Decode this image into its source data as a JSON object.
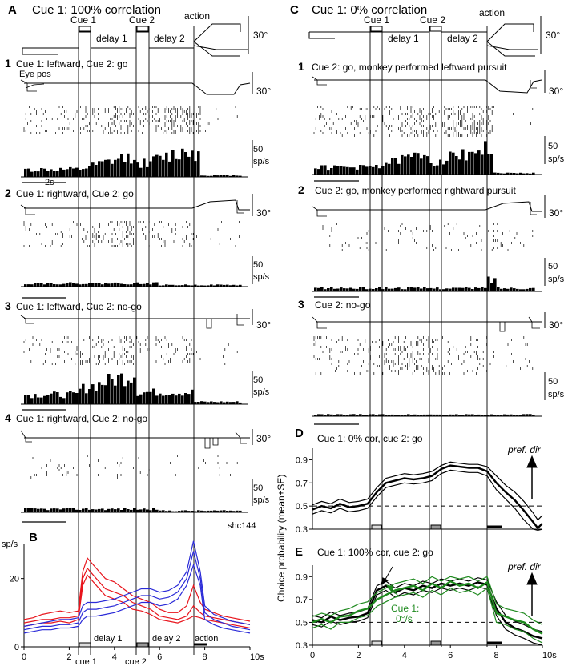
{
  "labels": {
    "panel_a": "A",
    "panel_b": "B",
    "panel_c": "C",
    "panel_d": "D",
    "panel_e": "E",
    "title_a": "Cue 1: 100% correlation",
    "title_c": "Cue 1: 0% correlation",
    "cue1": "Cue 1",
    "cue2": "Cue 2",
    "delay1": "delay 1",
    "delay2": "delay 2",
    "action": "action",
    "deg30": "30°",
    "eye_pos": "Eye pos",
    "rate50": "50",
    "rate_unit": "sp/s",
    "scale2s": "2s",
    "cell_id": "shc144",
    "a1_num": "1",
    "a1_title": "Cue 1: leftward,  Cue 2: go",
    "a2_num": "2",
    "a2_title": "Cue 1: rightward,  Cue 2: go",
    "a3_num": "3",
    "a3_title": "Cue 1: leftward,  Cue 2: no-go",
    "a4_num": "4",
    "a4_title": "Cue 1: rightward,  Cue 2: no-go",
    "c1_num": "1",
    "c1_title": "Cue 2: go, monkey performed leftward pursuit",
    "c2_num": "2",
    "c2_title": "Cue 2: go, monkey performed rightward pursuit",
    "c3_num": "3",
    "c3_title": "Cue 2: no-go",
    "b_ylabel": "sp/s",
    "b_xunit": "s",
    "b_cue1": "cue 1",
    "b_cue2": "cue 2",
    "b_delay1": "delay 1",
    "b_delay2": "delay 2",
    "b_action": "action",
    "cp_ylabel": "Choice probability  (mean±SE)",
    "d_title": "Cue 1: 0% cor, cue 2:  go",
    "e_title": "Cue 1: 100% cor, cue 2:  go",
    "pref_dir": "pref. dir",
    "e_green_1": "Cue 1:",
    "e_green_2": "0°/s",
    "e_xunit": "s"
  },
  "colors": {
    "black": "#000000",
    "red": "#e8141c",
    "blue": "#2a2ad8",
    "green": "#1f8a1f",
    "cue_box": "#dddddd",
    "cue2_box": "#999999"
  },
  "chart_data": [
    {
      "id": "B",
      "type": "line",
      "xlim": [
        0,
        10
      ],
      "ylim": [
        0,
        30
      ],
      "xticks": [
        0,
        2,
        4,
        6,
        8,
        10
      ],
      "xtick_labels": [
        "0",
        "2",
        "4",
        "6",
        "8",
        "10"
      ],
      "yticks": [
        0,
        20
      ],
      "ytick_labels": [
        "0",
        "20"
      ],
      "x": [
        0,
        0.4,
        0.8,
        1.2,
        1.6,
        2.0,
        2.4,
        2.6,
        2.8,
        3.2,
        3.6,
        4.0,
        4.4,
        4.8,
        5.2,
        5.6,
        6.0,
        6.4,
        6.8,
        7.2,
        7.5,
        7.8,
        8.0,
        8.4,
        8.8,
        9.2,
        9.6,
        10.0
      ],
      "series": [
        {
          "color": "red",
          "values": [
            7,
            7.5,
            8,
            8,
            8.5,
            8.5,
            9,
            20,
            23,
            20,
            17,
            16,
            15,
            13,
            12,
            11,
            9,
            8.5,
            8,
            9,
            12,
            10,
            9,
            8.5,
            8,
            7.5,
            7,
            6.5
          ]
        },
        {
          "color": "red",
          "values": [
            8,
            8.5,
            9.5,
            10,
            10.5,
            10,
            10.5,
            22,
            26,
            23,
            20,
            19,
            17,
            15,
            14,
            13,
            11,
            10,
            10,
            12,
            18,
            13,
            11,
            10,
            9,
            8.5,
            8,
            7.5
          ]
        },
        {
          "color": "red",
          "values": [
            6,
            6.5,
            7,
            7,
            7.5,
            7,
            8,
            18,
            21,
            18,
            15,
            14,
            13,
            11,
            10.5,
            9.5,
            8,
            7.5,
            7,
            8,
            9,
            8.5,
            8,
            7.5,
            7,
            6.5,
            6,
            5.5
          ]
        },
        {
          "color": "blue",
          "values": [
            5,
            5.5,
            6,
            6,
            6.5,
            6.5,
            7,
            10,
            11,
            11,
            11.5,
            12,
            13,
            14,
            15,
            15,
            14,
            14.5,
            16,
            20,
            28,
            20,
            10,
            8,
            7,
            6,
            5.5,
            5
          ]
        },
        {
          "color": "blue",
          "values": [
            6,
            6.5,
            7,
            7.5,
            8,
            8,
            8.5,
            12,
            13,
            13,
            13.5,
            14,
            15,
            16,
            17,
            17,
            16,
            16.5,
            18,
            22,
            31,
            22,
            12,
            9.5,
            8.5,
            7.5,
            7,
            6.5
          ]
        },
        {
          "color": "blue",
          "values": [
            4,
            4.5,
            5,
            5,
            5.5,
            5.5,
            6,
            8,
            9,
            9,
            9.5,
            10,
            11,
            12,
            13,
            13,
            12,
            12.5,
            14,
            18,
            24,
            18,
            8,
            6.5,
            5.5,
            5,
            4.5,
            4
          ]
        }
      ]
    },
    {
      "id": "D",
      "type": "line",
      "title": "Cue 1: 0% cor, cue 2:  go",
      "xlim": [
        0,
        10
      ],
      "ylim": [
        0.3,
        1.0
      ],
      "yticks": [
        0.3,
        0.5,
        0.7,
        0.9
      ],
      "ytick_labels": [
        "0.3",
        "0.5",
        "0.7",
        "0.9"
      ],
      "reference_line": 0.5,
      "x": [
        0,
        0.4,
        0.8,
        1.2,
        1.6,
        2.0,
        2.4,
        2.8,
        3.2,
        3.6,
        4.0,
        4.4,
        4.8,
        5.2,
        5.6,
        6.0,
        6.4,
        6.8,
        7.2,
        7.6,
        8.0,
        8.4,
        8.8,
        9.2,
        9.6,
        9.8,
        10.0
      ],
      "series": [
        {
          "color": "black",
          "values": [
            0.47,
            0.5,
            0.48,
            0.52,
            0.49,
            0.5,
            0.52,
            0.62,
            0.7,
            0.72,
            0.74,
            0.73,
            0.74,
            0.76,
            0.82,
            0.85,
            0.84,
            0.83,
            0.83,
            0.8,
            0.7,
            0.62,
            0.55,
            0.46,
            0.36,
            0.31,
            0.35
          ]
        },
        {
          "color": "black",
          "values": [
            0.51,
            0.54,
            0.52,
            0.56,
            0.53,
            0.54,
            0.56,
            0.66,
            0.74,
            0.76,
            0.78,
            0.77,
            0.78,
            0.8,
            0.85,
            0.88,
            0.87,
            0.86,
            0.86,
            0.84,
            0.76,
            0.68,
            0.62,
            0.54,
            0.44,
            0.38,
            0.42
          ]
        },
        {
          "color": "black",
          "values": [
            0.43,
            0.46,
            0.44,
            0.48,
            0.45,
            0.46,
            0.48,
            0.58,
            0.66,
            0.68,
            0.7,
            0.69,
            0.7,
            0.72,
            0.78,
            0.81,
            0.8,
            0.79,
            0.79,
            0.76,
            0.64,
            0.56,
            0.48,
            0.38,
            0.3,
            0.29,
            0.3
          ]
        }
      ]
    },
    {
      "id": "E",
      "type": "line",
      "title": "Cue 1: 100% cor, cue 2:  go",
      "xlim": [
        0,
        10
      ],
      "ylim": [
        0.3,
        1.0
      ],
      "xticks": [
        0,
        2,
        4,
        6,
        8,
        10
      ],
      "xtick_labels": [
        "0",
        "2",
        "4",
        "6",
        "8",
        "10"
      ],
      "yticks": [
        0.3,
        0.5,
        0.7,
        0.9
      ],
      "ytick_labels": [
        "0.3",
        "0.5",
        "0.7",
        "0.9"
      ],
      "reference_line": 0.5,
      "x": [
        0,
        0.4,
        0.8,
        1.2,
        1.6,
        2.0,
        2.4,
        2.8,
        3.2,
        3.6,
        4.0,
        4.4,
        4.8,
        5.2,
        5.6,
        6.0,
        6.4,
        6.8,
        7.2,
        7.6,
        8.0,
        8.4,
        8.8,
        9.2,
        9.6,
        10.0
      ],
      "series": [
        {
          "color": "black",
          "values": [
            0.52,
            0.5,
            0.55,
            0.52,
            0.54,
            0.55,
            0.58,
            0.78,
            0.82,
            0.76,
            0.8,
            0.78,
            0.82,
            0.8,
            0.84,
            0.82,
            0.84,
            0.82,
            0.85,
            0.83,
            0.62,
            0.5,
            0.45,
            0.42,
            0.38,
            0.36
          ]
        },
        {
          "color": "black",
          "values": [
            0.56,
            0.54,
            0.59,
            0.56,
            0.58,
            0.59,
            0.62,
            0.82,
            0.86,
            0.8,
            0.84,
            0.82,
            0.86,
            0.84,
            0.88,
            0.86,
            0.88,
            0.86,
            0.89,
            0.87,
            0.68,
            0.56,
            0.51,
            0.48,
            0.44,
            0.42
          ]
        },
        {
          "color": "black",
          "values": [
            0.48,
            0.46,
            0.51,
            0.48,
            0.5,
            0.51,
            0.54,
            0.74,
            0.78,
            0.72,
            0.76,
            0.74,
            0.78,
            0.76,
            0.8,
            0.78,
            0.8,
            0.78,
            0.81,
            0.79,
            0.56,
            0.44,
            0.39,
            0.36,
            0.32,
            0.3
          ]
        },
        {
          "color": "green",
          "values": [
            0.5,
            0.53,
            0.5,
            0.55,
            0.56,
            0.6,
            0.62,
            0.7,
            0.74,
            0.78,
            0.8,
            0.82,
            0.78,
            0.84,
            0.8,
            0.86,
            0.82,
            0.84,
            0.8,
            0.85,
            0.58,
            0.55,
            0.52,
            0.5,
            0.44,
            0.4
          ]
        },
        {
          "color": "green",
          "values": [
            0.55,
            0.58,
            0.56,
            0.6,
            0.62,
            0.66,
            0.68,
            0.76,
            0.8,
            0.84,
            0.86,
            0.88,
            0.84,
            0.9,
            0.86,
            0.9,
            0.88,
            0.9,
            0.86,
            0.9,
            0.66,
            0.62,
            0.6,
            0.58,
            0.52,
            0.48
          ]
        },
        {
          "color": "green",
          "values": [
            0.45,
            0.48,
            0.44,
            0.5,
            0.5,
            0.54,
            0.56,
            0.64,
            0.68,
            0.72,
            0.74,
            0.76,
            0.72,
            0.78,
            0.74,
            0.8,
            0.76,
            0.78,
            0.74,
            0.8,
            0.5,
            0.48,
            0.44,
            0.42,
            0.36,
            0.32
          ]
        }
      ]
    }
  ]
}
